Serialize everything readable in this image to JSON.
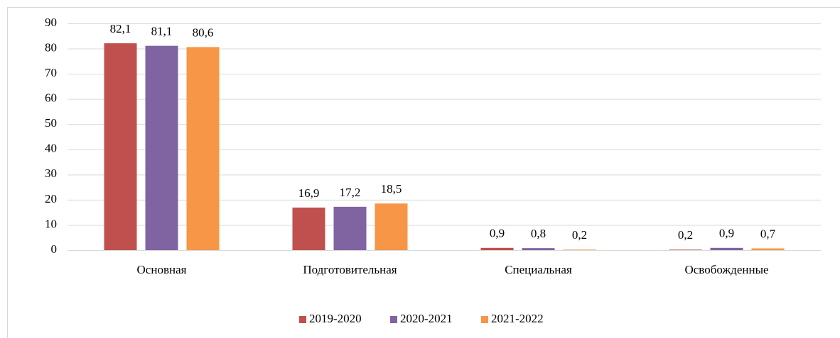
{
  "chart_data": {
    "type": "bar",
    "categories": [
      "Основная",
      "Подготовительная",
      "Специальная",
      "Освобожденные"
    ],
    "series": [
      {
        "name": "2019-2020",
        "color": "#c0504d",
        "values": [
          82.1,
          16.9,
          0.9,
          0.2
        ],
        "value_labels": [
          "82,1",
          "16,9",
          "0,9",
          "0,2"
        ]
      },
      {
        "name": "2020-2021",
        "color": "#8064a2",
        "values": [
          81.1,
          17.2,
          0.8,
          0.9
        ],
        "value_labels": [
          "81,1",
          "17,2",
          "0,8",
          "0,9"
        ]
      },
      {
        "name": "2021-2022",
        "color": "#f79646",
        "values": [
          80.6,
          18.5,
          0.2,
          0.7
        ],
        "value_labels": [
          "80,6",
          "18,5",
          "0,2",
          "0,7"
        ]
      }
    ],
    "ylim": [
      0,
      90
    ],
    "yticks": [
      0,
      10,
      20,
      30,
      40,
      50,
      60,
      70,
      80,
      90
    ],
    "grid": true,
    "legend": "bottom"
  }
}
